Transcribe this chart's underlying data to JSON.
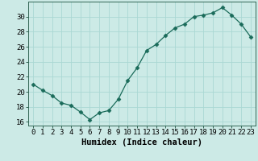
{
  "x": [
    0,
    1,
    2,
    3,
    4,
    5,
    6,
    7,
    8,
    9,
    10,
    11,
    12,
    13,
    14,
    15,
    16,
    17,
    18,
    19,
    20,
    21,
    22,
    23
  ],
  "y": [
    21.0,
    20.2,
    19.5,
    18.5,
    18.2,
    17.3,
    16.3,
    17.2,
    17.5,
    19.0,
    21.5,
    23.2,
    25.5,
    26.3,
    27.5,
    28.5,
    29.0,
    30.0,
    30.2,
    30.5,
    31.2,
    30.2,
    29.0,
    27.3
  ],
  "xlim": [
    -0.5,
    23.5
  ],
  "ylim": [
    15.5,
    32.0
  ],
  "yticks": [
    16,
    18,
    20,
    22,
    24,
    26,
    28,
    30
  ],
  "xticks": [
    0,
    1,
    2,
    3,
    4,
    5,
    6,
    7,
    8,
    9,
    10,
    11,
    12,
    13,
    14,
    15,
    16,
    17,
    18,
    19,
    20,
    21,
    22,
    23
  ],
  "xlabel": "Humidex (Indice chaleur)",
  "line_color": "#1a6b5a",
  "marker": "D",
  "marker_size": 2.5,
  "bg_color": "#cceae6",
  "grid_color": "#aad8d3",
  "axis_color": "#336655",
  "xlabel_fontsize": 7.5,
  "tick_fontsize": 6.5
}
